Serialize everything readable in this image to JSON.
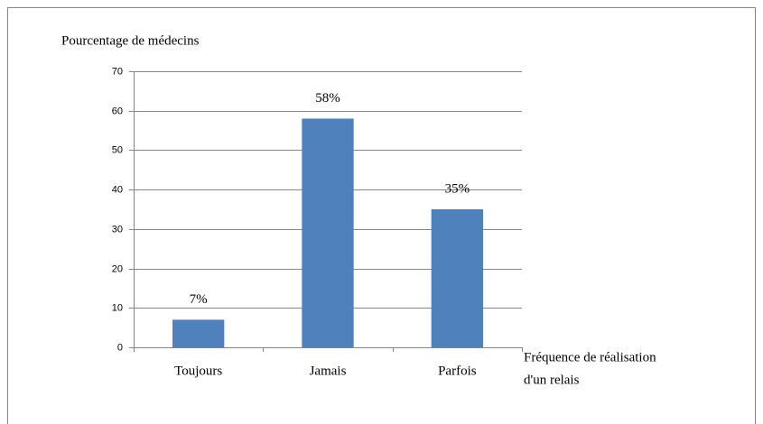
{
  "chart_data": {
    "type": "bar",
    "ylabel": "Pourcentage de médecins",
    "xlabel": [
      "Fréquence de réalisation",
      "d'un relais"
    ],
    "categories": [
      "Toujours",
      "Jamais",
      "Parfois"
    ],
    "values": [
      7,
      58,
      35
    ],
    "value_labels": [
      "7%",
      "58%",
      "35%"
    ],
    "color": "#4f81bd",
    "ylim": [
      0,
      70
    ],
    "yticks": [
      0,
      10,
      20,
      30,
      40,
      50,
      60,
      70
    ],
    "grid": true
  }
}
